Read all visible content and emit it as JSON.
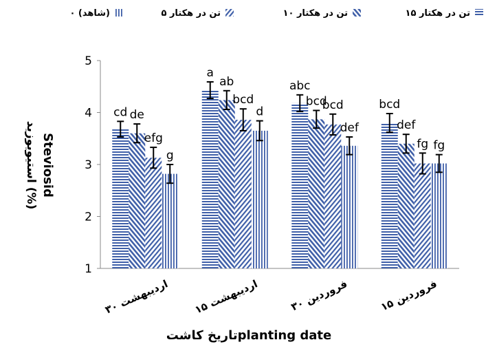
{
  "chart_data": {
    "type": "bar",
    "categories": [
      "۳۰ اردیبهشت",
      "۱۵ اردیبهشت",
      "۳۰ فروردین",
      "۱۵ فروردین"
    ],
    "series": [
      {
        "name": "۱۵ تن در هکتار",
        "pattern": "horizontal",
        "values": [
          3.68,
          4.43,
          4.18,
          3.8
        ],
        "errors": [
          0.15,
          0.16,
          0.16,
          0.18
        ],
        "labels": [
          "cd",
          "a",
          "abc",
          "bcd"
        ]
      },
      {
        "name": "۱۰ تن در هکتار",
        "pattern": "diag-up",
        "values": [
          3.6,
          4.24,
          3.87,
          3.4
        ],
        "errors": [
          0.18,
          0.18,
          0.17,
          0.18
        ],
        "labels": [
          "de",
          "ab",
          "bcd",
          "def"
        ]
      },
      {
        "name": "۵ تن در هکتار",
        "pattern": "diag-down",
        "values": [
          3.13,
          3.86,
          3.77,
          3.02
        ],
        "errors": [
          0.2,
          0.21,
          0.2,
          0.2
        ],
        "labels": [
          "efg",
          "bcd",
          "bcd",
          "fg"
        ]
      },
      {
        "name": "۰ (شاهد)",
        "pattern": "vertical",
        "values": [
          2.82,
          3.65,
          3.36,
          3.02
        ],
        "errors": [
          0.18,
          0.19,
          0.17,
          0.17
        ],
        "labels": [
          "g",
          "d",
          "def",
          "fg"
        ]
      }
    ],
    "ylim": [
      1,
      5
    ],
    "yticks": [
      "1",
      "2",
      "3",
      "4",
      "5"
    ],
    "ylabel_fa": "استیویوزید (%)",
    "ylabel_en": "Steviosid",
    "xlabel": "تاریخ کاشتplanting date",
    "legend_position": "top",
    "bar_color": "#3f5fa8",
    "grid": false
  }
}
